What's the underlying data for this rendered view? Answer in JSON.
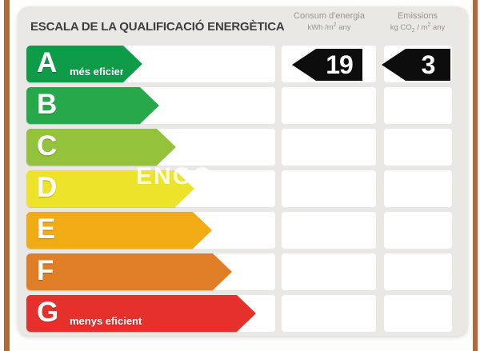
{
  "chart_data": {
    "type": "bar",
    "title": "ESCALA DE LA QUALIFICACIÓ ENERGÈTICA",
    "categories": [
      "A",
      "B",
      "C",
      "D",
      "E",
      "F",
      "G"
    ],
    "category_annotations": {
      "A": "més eficient",
      "G": "menys eficient"
    },
    "bar_colors": [
      "#0f9c49",
      "#27a84a",
      "#94c23b",
      "#ece32a",
      "#f0ab15",
      "#e07e28",
      "#e5302b"
    ],
    "bar_relative_lengths": [
      145,
      166,
      187,
      210,
      232,
      257,
      287
    ],
    "series": [
      {
        "name": "Consum d'energia (kWh/m2 any)",
        "values": [
          19,
          null,
          null,
          null,
          null,
          null,
          null
        ]
      },
      {
        "name": "Emissions (kg CO2/m2 any)",
        "values": [
          3,
          null,
          null,
          null,
          null,
          null,
          null
        ]
      }
    ],
    "rating": "A",
    "legend_position": "top",
    "grid": false
  },
  "page": {
    "title": "ESCALA DE LA QUALIFICACIÓ ENERGÈTICA"
  },
  "columns": {
    "consum": {
      "line1": "Consum d'energia",
      "unit_prefix": "kWh /m",
      "unit_sup": "2",
      "unit_suffix": " any"
    },
    "emissions": {
      "line1": "Emissions",
      "unit_prefix": "kg CO",
      "unit_sub": "2",
      "unit_mid": " / m",
      "unit_sup": "2",
      "unit_suffix": " any"
    }
  },
  "scale": {
    "rows": [
      {
        "letter": "A",
        "sublabel": "més eficient",
        "color": "#0f9c49",
        "arrow_width": 145,
        "consum": "19",
        "emissions": "3"
      },
      {
        "letter": "B",
        "color": "#27a84a",
        "arrow_width": 166
      },
      {
        "letter": "C",
        "color": "#94c23b",
        "arrow_width": 187
      },
      {
        "letter": "D",
        "color": "#ece32a",
        "arrow_width": 210
      },
      {
        "letter": "E",
        "color": "#f0ab15",
        "arrow_width": 232
      },
      {
        "letter": "F",
        "color": "#e07e28",
        "arrow_width": 257
      },
      {
        "letter": "G",
        "sublabel": "menys eficient",
        "color": "#e5302b",
        "arrow_width": 287
      }
    ]
  },
  "watermark": "ENGO",
  "colors": {
    "badge": "#0d0d0d",
    "card_bg": "#e9e8e5",
    "frame_strip": "#b26a3a",
    "title_text": "#3e3e3e",
    "header_text": "#97948f"
  }
}
